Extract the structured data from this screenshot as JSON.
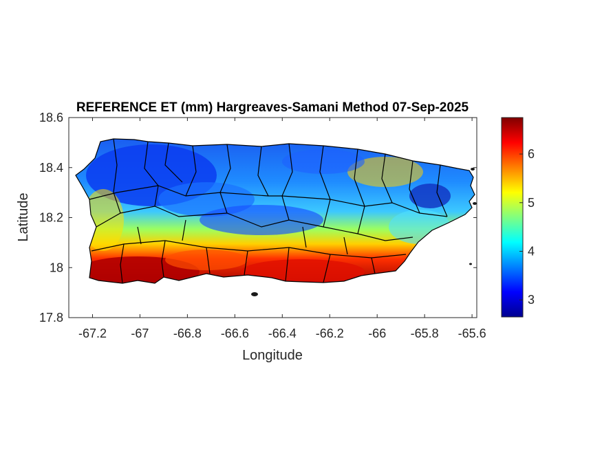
{
  "title": "REFERENCE ET (mm) Hargreaves-Samani Method  07-Sep-2025",
  "map": {
    "xlabel": "Longitude",
    "ylabel": "Latitude",
    "xlim": [
      -67.3,
      -65.58
    ],
    "ylim": [
      17.8,
      18.6
    ],
    "xticks": [
      {
        "value": -67.2,
        "label": "-67.2"
      },
      {
        "value": -67.0,
        "label": "-67"
      },
      {
        "value": -66.8,
        "label": "-66.8"
      },
      {
        "value": -66.6,
        "label": "-66.6"
      },
      {
        "value": -66.4,
        "label": "-66.4"
      },
      {
        "value": -66.2,
        "label": "-66.2"
      },
      {
        "value": -66.0,
        "label": "-66"
      },
      {
        "value": -65.8,
        "label": "-65.8"
      },
      {
        "value": -65.6,
        "label": "-65.6"
      }
    ],
    "yticks": [
      {
        "value": 17.8,
        "label": "17.8"
      },
      {
        "value": 18.0,
        "label": "18"
      },
      {
        "value": 18.2,
        "label": "18.2"
      },
      {
        "value": 18.4,
        "label": "18.4"
      },
      {
        "value": 18.6,
        "label": "18.6"
      }
    ],
    "region": "Puerto Rico"
  },
  "colorbar": {
    "colormap": "jet",
    "range": [
      2.65,
      6.75
    ],
    "ticks": [
      {
        "value": 3,
        "label": "3"
      },
      {
        "value": 4,
        "label": "4"
      },
      {
        "value": 5,
        "label": "5"
      },
      {
        "value": 6,
        "label": "6"
      }
    ]
  },
  "colors": {
    "very_low": "#00008f",
    "low": "#0040ff",
    "mid_low": "#00c0ff",
    "mid": "#80ff80",
    "mid_high": "#ffff00",
    "high": "#ff4000",
    "very_high": "#800000",
    "border": "#000000"
  }
}
